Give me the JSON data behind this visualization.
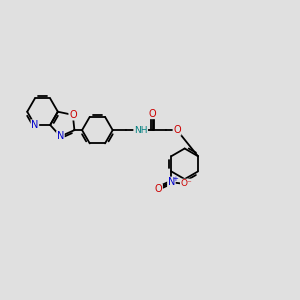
{
  "background_color": "#e0e0e0",
  "bond_color": "#000000",
  "bond_width": 1.3,
  "atom_colors": {
    "C": "#000000",
    "N": "#0000cc",
    "O": "#cc0000",
    "H": "#008080"
  },
  "figsize": [
    3.0,
    3.0
  ],
  "dpi": 100
}
